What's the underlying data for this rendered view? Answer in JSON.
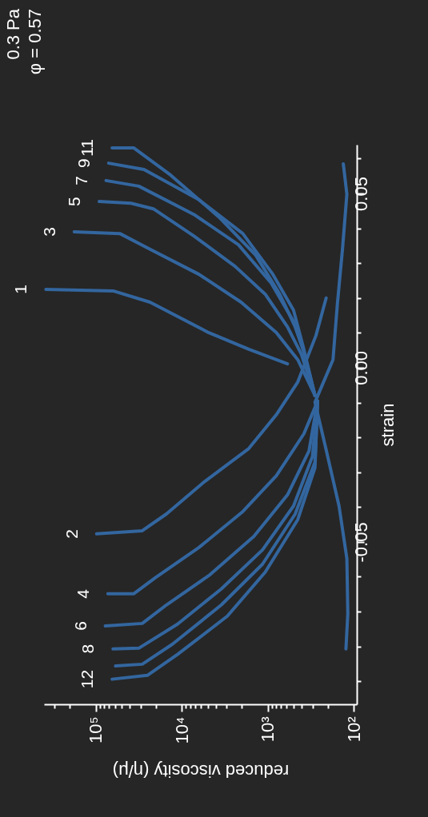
{
  "chart_data": {
    "type": "line",
    "xlabel": "reduced viscosity (η/μ)",
    "ylabel": "strain",
    "log": "x",
    "annotations": [
      "0.3 Pa",
      "φ = 0.57"
    ],
    "xlim": [
      400000,
      92
    ],
    "ylim": [
      -0.0966,
      0.064
    ],
    "yticks": [
      {
        "value": -0.09,
        "label": null
      },
      {
        "value": -0.08,
        "label": null
      },
      {
        "value": -0.07,
        "label": null
      },
      {
        "value": -0.06,
        "label": null
      },
      {
        "value": -0.05,
        "label": "-0.05"
      },
      {
        "value": -0.04,
        "label": null
      },
      {
        "value": -0.03,
        "label": null
      },
      {
        "value": -0.02,
        "label": null
      },
      {
        "value": -0.01,
        "label": null
      },
      {
        "value": 0,
        "label": "0.00"
      },
      {
        "value": 0.01,
        "label": null
      },
      {
        "value": 0.02,
        "label": null
      },
      {
        "value": 0.03,
        "label": null
      },
      {
        "value": 0.04,
        "label": null
      },
      {
        "value": 0.05,
        "label": "0.05"
      },
      {
        "value": 0.06,
        "label": null
      }
    ],
    "xticks": [
      {
        "value": 300000,
        "label": null
      },
      {
        "value": 200000,
        "label": null
      },
      {
        "value": 100000,
        "label": "10⁵"
      },
      {
        "value": 90000,
        "label": null
      },
      {
        "value": 80000,
        "label": null
      },
      {
        "value": 70000,
        "label": null
      },
      {
        "value": 60000,
        "label": null
      },
      {
        "value": 50000,
        "label": null
      },
      {
        "value": 40000,
        "label": null
      },
      {
        "value": 30000,
        "label": null
      },
      {
        "value": 20000,
        "label": null
      },
      {
        "value": 10000,
        "label": "10⁴"
      },
      {
        "value": 9000,
        "label": null
      },
      {
        "value": 8000,
        "label": null
      },
      {
        "value": 7000,
        "label": null
      },
      {
        "value": 6000,
        "label": null
      },
      {
        "value": 5000,
        "label": null
      },
      {
        "value": 4000,
        "label": null
      },
      {
        "value": 3000,
        "label": null
      },
      {
        "value": 2000,
        "label": null
      },
      {
        "value": 1000,
        "label": "10³"
      },
      {
        "value": 900,
        "label": null
      },
      {
        "value": 800,
        "label": null
      },
      {
        "value": 700,
        "label": null
      },
      {
        "value": 600,
        "label": null
      },
      {
        "value": 500,
        "label": null
      },
      {
        "value": 400,
        "label": null
      },
      {
        "value": 300,
        "label": null
      },
      {
        "value": 200,
        "label": null
      },
      {
        "value": 100,
        "label": "10²"
      }
    ],
    "series": [
      {
        "name": "1",
        "color": "#33669f",
        "values": [
          0.0011,
          0.0053,
          0.0101,
          0.0188,
          0.022,
          0.0225
        ],
        "x": [
          589,
          1660,
          4900,
          23400,
          61700,
          380000
        ]
      },
      {
        "name": "3",
        "color": "#33669f",
        "values": [
          -0.008,
          0.0023,
          0.0101,
          0.0188,
          0.0268,
          0.034,
          0.0385,
          0.039
        ],
        "x": [
          282,
          447,
          794,
          2040,
          6310,
          23400,
          52500,
          178000
        ]
      },
      {
        "name": "5",
        "color": "#33669f",
        "values": [
          -0.008,
          0.0039,
          0.0117,
          0.0211,
          0.0291,
          0.0378,
          0.0456,
          0.0472,
          0.0477
        ],
        "x": [
          282,
          407,
          589,
          1070,
          2400,
          7240,
          21400,
          38900,
          91200
        ]
      },
      {
        "name": "7",
        "color": "#33669f",
        "values": [
          -0.008,
          0.0046,
          0.0133,
          0.0243,
          0.0353,
          0.044,
          0.0521,
          0.0537
        ],
        "x": [
          282,
          380,
          501,
          912,
          2190,
          7240,
          31600,
          75900
        ]
      },
      {
        "name": "9",
        "color": "#33669f",
        "values": [
          -0.008,
          0.0053,
          0.0165,
          0.0268,
          0.0385,
          0.0482,
          0.0569,
          0.0587
        ],
        "x": [
          282,
          380,
          501,
          871,
          1950,
          6310,
          27500,
          70800
        ]
      },
      {
        "name": "11",
        "color": "#33669f",
        "values": [
          -0.008,
          0.0046,
          0.0117,
          0.0211,
          0.0323,
          0.0433,
          0.0553,
          0.0631,
          0.0631
        ],
        "x": [
          282,
          380,
          479,
          724,
          1380,
          3720,
          13500,
          36300,
          64600
        ]
      },
      {
        "name": "2",
        "color": "#33669f",
        "values": [
          0.02,
          0.0092,
          -0.0041,
          -0.0135,
          -0.0232,
          -0.0326,
          -0.042,
          -0.0468,
          -0.0477
        ],
        "x": [
          209,
          275,
          447,
          794,
          1660,
          5370,
          15100,
          28800,
          97700
        ]
      },
      {
        "name": "4",
        "color": "#33669f",
        "values": [
          -0.0096,
          -0.019,
          -0.031,
          -0.0413,
          -0.0516,
          -0.0603,
          -0.0649,
          -0.0649
        ],
        "x": [
          263,
          380,
          794,
          1950,
          6310,
          20400,
          36300,
          72400
        ]
      },
      {
        "name": "6",
        "color": "#33669f",
        "values": [
          -0.0096,
          -0.0239,
          -0.0365,
          -0.0484,
          -0.0594,
          -0.0681,
          -0.0734,
          -0.0741
        ],
        "x": [
          263,
          331,
          589,
          1450,
          4680,
          15100,
          28800,
          77600
        ]
      },
      {
        "name": "8",
        "color": "#33669f",
        "values": [
          -0.0096,
          -0.0255,
          -0.0397,
          -0.0523,
          -0.0635,
          -0.0736,
          -0.0805,
          -0.0807
        ],
        "x": [
          263,
          302,
          501,
          1150,
          3470,
          11200,
          31600,
          63100
        ]
      },
      {
        "color": "#33669f",
        "values": [
          -0.0096,
          -0.0271,
          -0.042,
          -0.0564,
          -0.0681,
          -0.0794,
          -0.0851,
          -0.0856
        ],
        "x": [
          263,
          282,
          479,
          1150,
          3470,
          12900,
          28800,
          58900
        ]
      },
      {
        "name": "12",
        "color": "#33669f",
        "values": [
          -0.0096,
          -0.0287,
          -0.0436,
          -0.0587,
          -0.0713,
          -0.0823,
          -0.0883,
          -0.0894
        ],
        "x": [
          263,
          282,
          447,
          1070,
          2950,
          11200,
          25100,
          64600
        ]
      },
      {
        "color": "#33669f",
        "values": [
          0.0585,
          0.0498,
          0.034,
          0.0181,
          0.0023,
          -0.0099,
          -0.0236,
          -0.0397,
          -0.0548,
          -0.0706,
          -0.0807
        ],
        "x": [
          132,
          120,
          135,
          155,
          174,
          282,
          209,
          148,
          120,
          117,
          123
        ]
      }
    ]
  }
}
